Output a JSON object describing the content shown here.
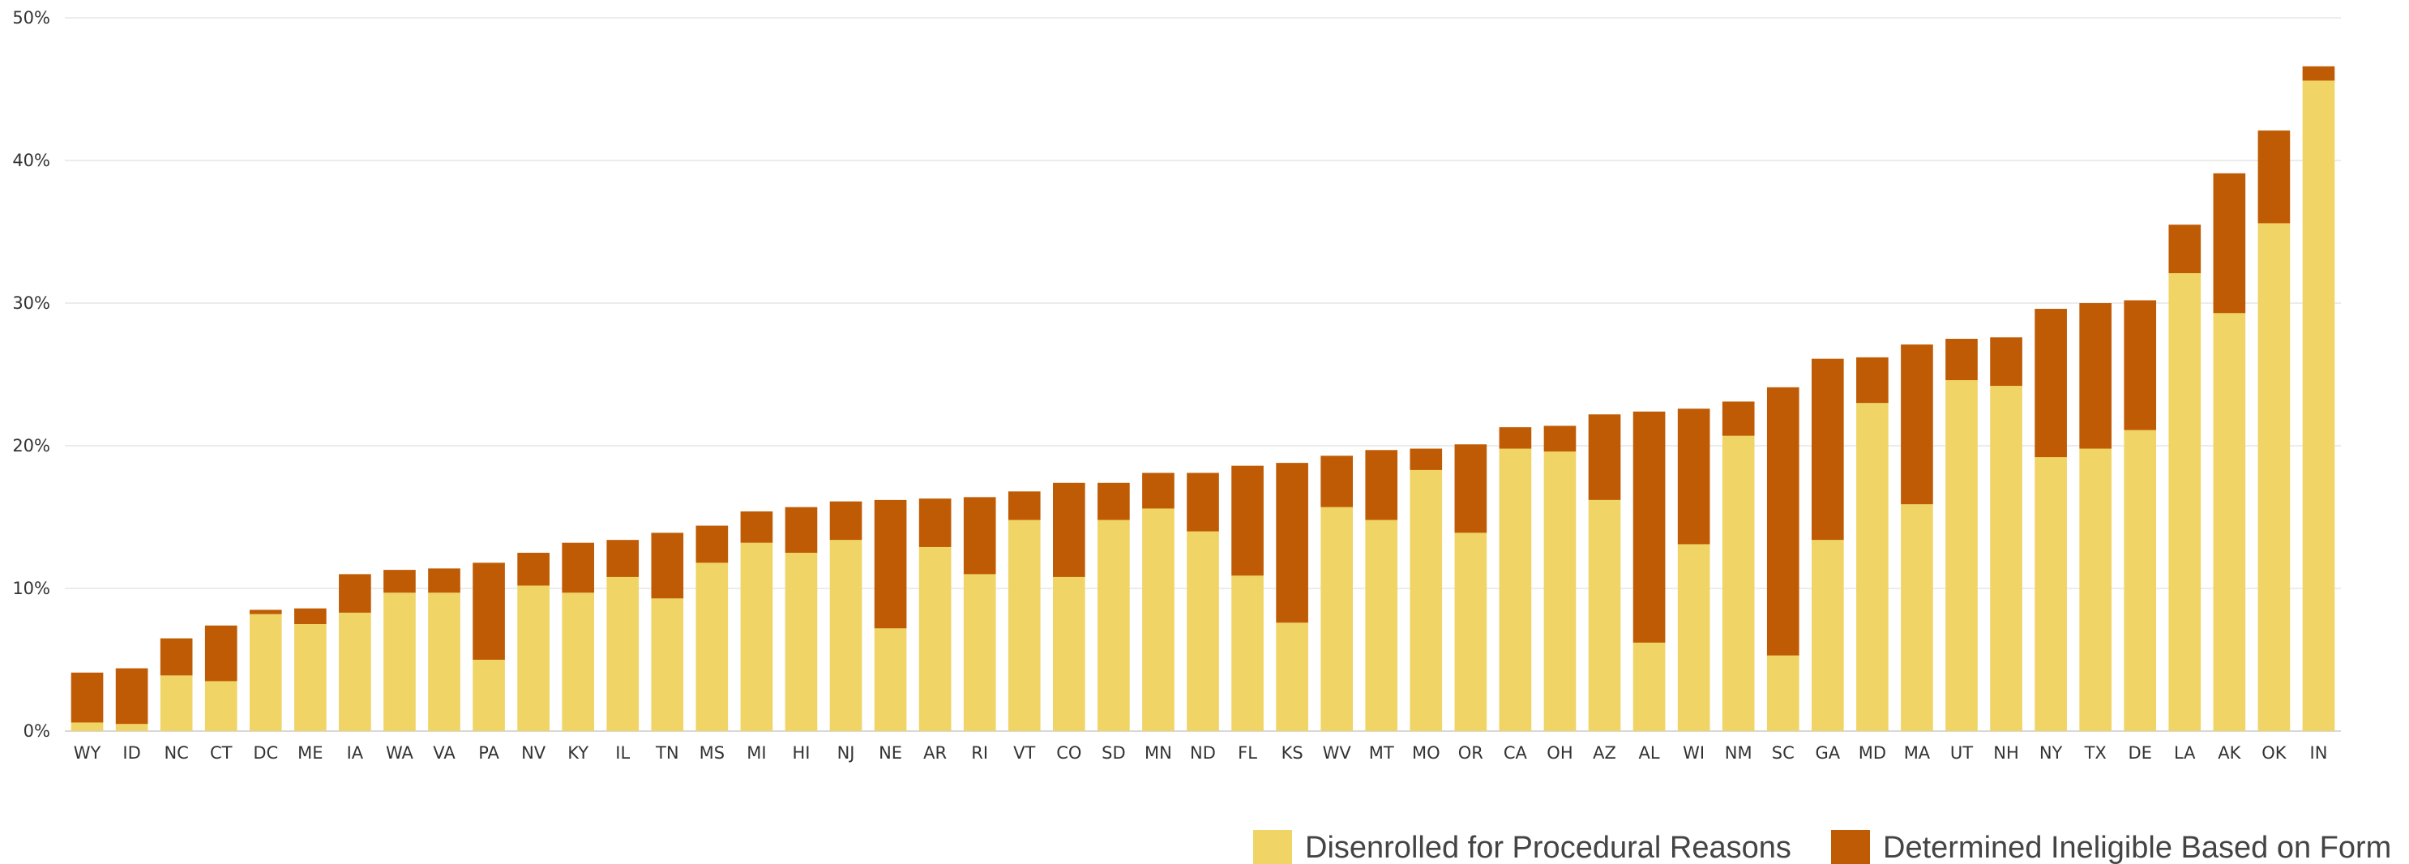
{
  "chart_data": {
    "type": "bar",
    "stacked": true,
    "title": "",
    "xlabel": "",
    "ylabel": "",
    "ylim": [
      0,
      50
    ],
    "yticks": [
      "0%",
      "10%",
      "20%",
      "30%",
      "40%",
      "50%"
    ],
    "grid": true,
    "legend_position": "bottom-right",
    "categories": [
      "WY",
      "ID",
      "NC",
      "CT",
      "DC",
      "ME",
      "IA",
      "WA",
      "VA",
      "PA",
      "NV",
      "KY",
      "IL",
      "TN",
      "MS",
      "MI",
      "HI",
      "NJ",
      "NE",
      "AR",
      "RI",
      "VT",
      "CO",
      "SD",
      "MN",
      "ND",
      "FL",
      "KS",
      "WV",
      "MT",
      "MO",
      "OR",
      "CA",
      "OH",
      "AZ",
      "AL",
      "WI",
      "NM",
      "SC",
      "GA",
      "MD",
      "MA",
      "UT",
      "NH",
      "NY",
      "TX",
      "DE",
      "LA",
      "AK",
      "OK",
      "IN"
    ],
    "series": [
      {
        "name": "Disenrolled for Procedural Reasons",
        "color": "#f0d466",
        "values": [
          0.6,
          0.5,
          3.9,
          3.5,
          8.2,
          7.5,
          8.3,
          9.7,
          9.7,
          5.0,
          10.2,
          9.7,
          10.8,
          9.3,
          11.8,
          13.2,
          12.5,
          13.4,
          7.2,
          12.9,
          11.0,
          14.8,
          10.8,
          14.8,
          15.6,
          14.0,
          10.9,
          7.6,
          15.7,
          14.8,
          18.3,
          13.9,
          19.8,
          19.6,
          16.2,
          6.2,
          13.1,
          20.7,
          5.3,
          13.4,
          23.0,
          15.9,
          24.6,
          24.2,
          19.2,
          19.8,
          21.1,
          32.1,
          29.3,
          35.6,
          45.6
        ]
      },
      {
        "name": "Determined Ineligible Based on Form",
        "color": "#bf5b04",
        "values": [
          3.5,
          3.9,
          2.6,
          3.9,
          0.3,
          1.1,
          2.7,
          1.6,
          1.7,
          6.8,
          2.3,
          3.5,
          2.6,
          4.6,
          2.6,
          2.2,
          3.2,
          2.7,
          9.0,
          3.4,
          5.4,
          2.0,
          6.6,
          2.6,
          2.5,
          4.1,
          7.7,
          11.2,
          3.6,
          4.9,
          1.5,
          6.2,
          1.5,
          1.8,
          6.0,
          16.2,
          9.5,
          2.4,
          18.8,
          12.7,
          3.2,
          11.2,
          2.9,
          3.4,
          10.4,
          10.2,
          9.1,
          3.4,
          9.8,
          6.5,
          1.0
        ]
      }
    ]
  }
}
